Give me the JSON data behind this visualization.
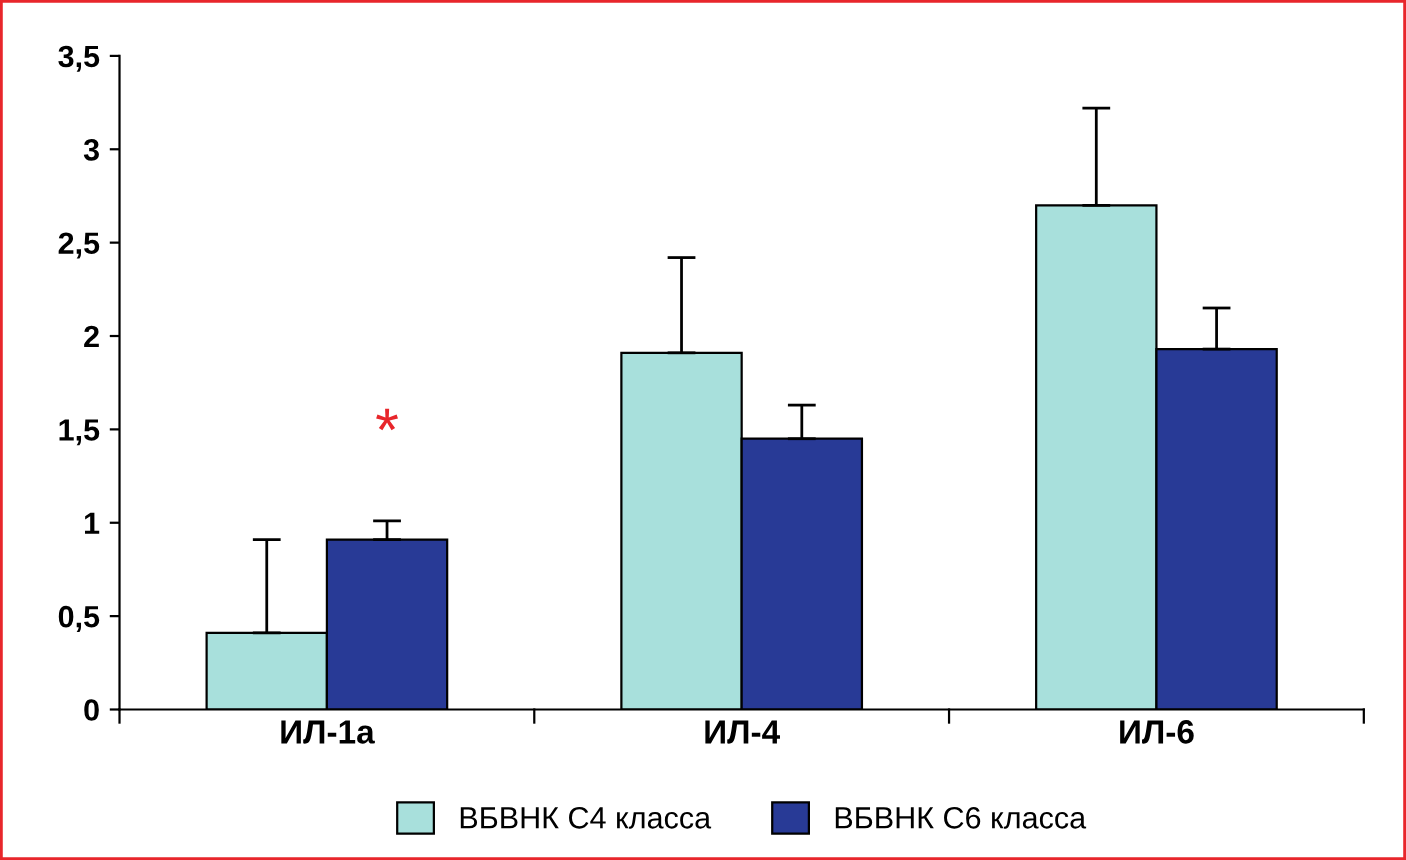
{
  "chart_data": {
    "type": "bar",
    "categories": [
      "ИЛ-1а",
      "ИЛ-4",
      "ИЛ-6"
    ],
    "series": [
      {
        "name": "ВБВНК С4 класса",
        "color": "#a8e0dc",
        "values": [
          0.41,
          1.91,
          2.7
        ],
        "errors": [
          [
            0.41,
            0.91
          ],
          [
            1.91,
            2.42
          ],
          [
            2.7,
            3.22
          ]
        ]
      },
      {
        "name": "ВБВНК С6 класса",
        "color": "#283a96",
        "values": [
          0.91,
          1.45,
          1.93
        ],
        "errors": [
          [
            0.91,
            1.01
          ],
          [
            1.45,
            1.63
          ],
          [
            1.93,
            2.15
          ]
        ]
      }
    ],
    "ylim": [
      0,
      3.5
    ],
    "yticks": [
      0,
      {
        "value": 0.5,
        "label": "0,5"
      },
      1,
      {
        "value": 1.5,
        "label": "1,5"
      },
      2,
      {
        "value": 2.5,
        "label": "2,5"
      },
      3,
      {
        "value": 3.5,
        "label": "3,5"
      }
    ],
    "annotations": [
      "*"
    ],
    "grid": false,
    "legend": "bottom"
  }
}
